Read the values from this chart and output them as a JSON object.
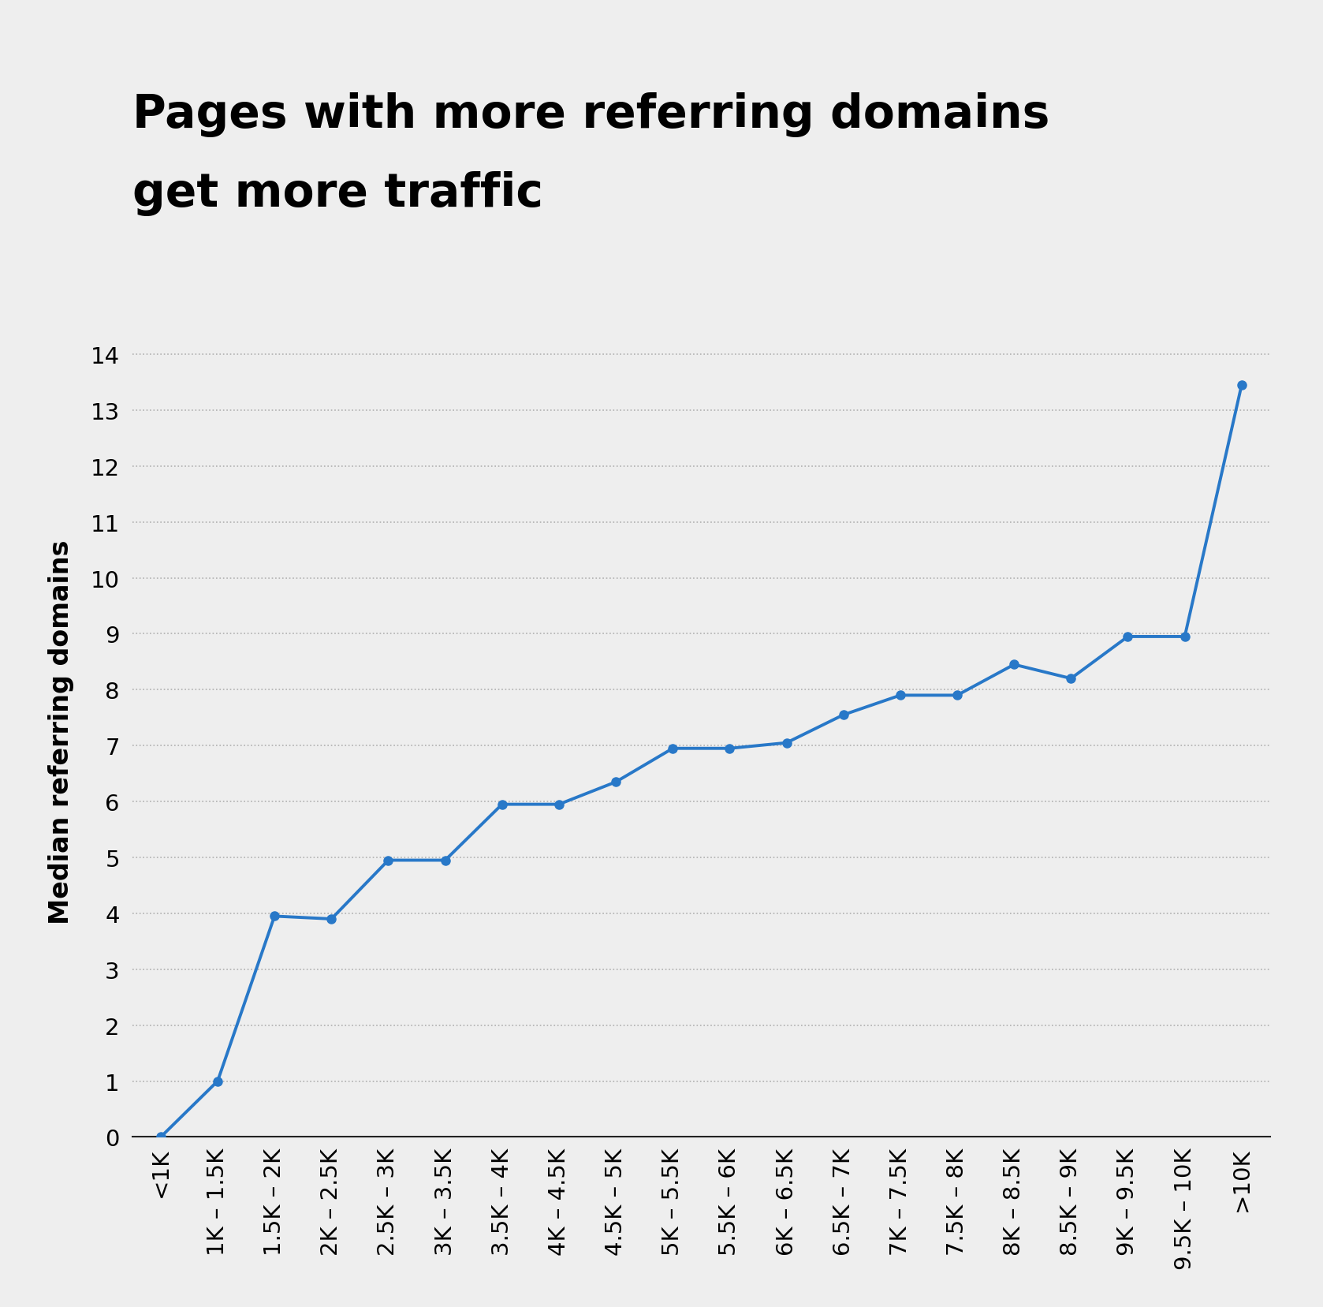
{
  "title_line1": "Pages with more referring domains",
  "title_line2": "get more traffic",
  "ylabel": "Median referring domains",
  "background_color": "#eeeeee",
  "line_color": "#2878c8",
  "marker_color": "#2878c8",
  "x_labels": [
    "<1K",
    "1K – 1.5K",
    "1.5K – 2K",
    "2K – 2.5K",
    "2.5K – 3K",
    "3K – 3.5K",
    "3.5K – 4K",
    "4K – 4.5K",
    "4.5K – 5K",
    "5K – 5.5K",
    "5.5K – 6K",
    "6K – 6.5K",
    "6.5K – 7K",
    "7K – 7.5K",
    "7.5K – 8K",
    "8K – 8.5K",
    "8.5K – 9K",
    "9K – 9.5K",
    "9.5K – 10K",
    ">10K"
  ],
  "values": [
    0,
    1.0,
    3.95,
    3.9,
    4.95,
    4.95,
    5.95,
    5.95,
    6.35,
    6.95,
    6.95,
    7.05,
    7.55,
    7.9,
    7.9,
    8.45,
    8.2,
    8.95,
    8.95,
    13.45
  ],
  "ylim": [
    0,
    14.5
  ],
  "yticks": [
    0,
    1,
    2,
    3,
    4,
    5,
    6,
    7,
    8,
    9,
    10,
    11,
    12,
    13,
    14
  ],
  "title_fontsize": 42,
  "axis_label_fontsize": 24,
  "tick_fontsize": 21,
  "grid_color": "#b0b0b0",
  "grid_style": ":"
}
